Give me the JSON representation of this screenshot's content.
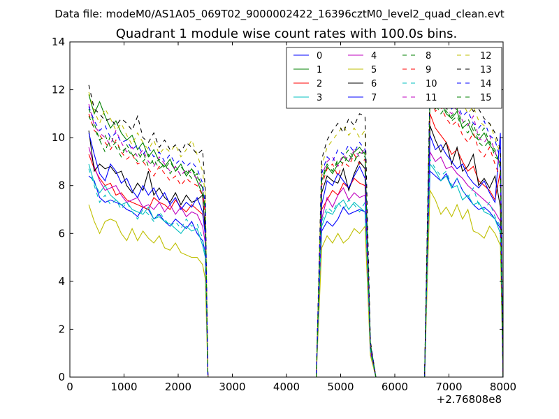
{
  "chart_data": {
    "type": "line",
    "suptitle": "Data file: modeM0/AS1A05_069T02_9000002422_16396cztM0_level2_quad_clean.evt",
    "title": "Quadrant 1 module wise count rates with 100.0s bins.",
    "xlabel": "",
    "ylabel": "",
    "x_offset_label": "+2.76808e8",
    "xlim": [
      0,
      8000
    ],
    "ylim": [
      0,
      14
    ],
    "x_ticks": [
      0,
      1000,
      2000,
      3000,
      4000,
      5000,
      6000,
      7000,
      8000
    ],
    "y_ticks": [
      0,
      2,
      4,
      6,
      8,
      10,
      12,
      14
    ],
    "legend_position": "top-right",
    "x": [
      350,
      450,
      550,
      650,
      750,
      850,
      950,
      1050,
      1150,
      1250,
      1350,
      1450,
      1550,
      1650,
      1750,
      1850,
      1950,
      2050,
      2150,
      2250,
      2350,
      2450,
      2500,
      2550,
      2650,
      2750,
      4450,
      4550,
      4650,
      4750,
      4850,
      4950,
      5050,
      5150,
      5250,
      5350,
      5450,
      5550,
      5650,
      6450,
      6550,
      6650,
      6750,
      6850,
      6950,
      7050,
      7150,
      7250,
      7350,
      7450,
      7550,
      7650,
      7750,
      7850,
      7950,
      8000
    ],
    "series": [
      {
        "name": "0",
        "color": "#0000ff",
        "dash": "solid",
        "values": [
          8.4,
          8.2,
          7.5,
          7.3,
          7.4,
          7.3,
          7.2,
          7.0,
          6.9,
          6.7,
          7.1,
          7.0,
          6.6,
          6.8,
          6.5,
          6.3,
          6.6,
          6.4,
          6.2,
          6.5,
          6.0,
          5.7,
          5.2,
          0,
          0,
          0,
          0,
          0,
          6.1,
          6.5,
          6.3,
          6.6,
          7.1,
          6.8,
          6.9,
          7.0,
          6.9,
          1.0,
          0,
          0,
          0,
          8.6,
          8.4,
          8.2,
          8.5,
          7.9,
          8.3,
          7.8,
          7.5,
          7.2,
          7.0,
          7.1,
          6.9,
          6.6,
          6.2,
          0
        ]
      },
      {
        "name": "1",
        "color": "#008000",
        "dash": "solid",
        "values": [
          11.8,
          11.0,
          11.5,
          10.9,
          10.4,
          10.7,
          10.2,
          9.9,
          10.1,
          9.5,
          9.8,
          9.2,
          9.5,
          9.0,
          8.8,
          9.1,
          8.6,
          8.9,
          8.4,
          8.7,
          8.2,
          7.6,
          7.0,
          0,
          0,
          0,
          0,
          0,
          8.2,
          8.8,
          8.5,
          8.9,
          9.2,
          9.0,
          9.4,
          9.6,
          9.3,
          1.4,
          0,
          0,
          0,
          11.6,
          11.2,
          11.5,
          11.0,
          10.8,
          11.1,
          10.4,
          10.6,
          10.1,
          9.9,
          10.2,
          9.7,
          9.4,
          8.9,
          0
        ]
      },
      {
        "name": "2",
        "color": "#ff0000",
        "dash": "solid",
        "values": [
          9.3,
          8.7,
          8.3,
          8.0,
          8.1,
          7.6,
          7.7,
          7.4,
          7.3,
          7.2,
          7.1,
          7.0,
          7.5,
          7.3,
          7.2,
          7.0,
          7.4,
          7.1,
          6.9,
          7.2,
          7.0,
          6.8,
          6.2,
          0,
          0,
          0,
          0,
          0,
          7.0,
          7.4,
          7.8,
          7.6,
          8.1,
          7.9,
          8.3,
          8.1,
          8.0,
          1.2,
          0,
          0,
          0,
          11.0,
          10.4,
          10.1,
          9.8,
          9.3,
          9.5,
          9.0,
          8.6,
          8.8,
          8.2,
          8.0,
          7.8,
          7.4,
          8.6,
          0
        ]
      },
      {
        "name": "3",
        "color": "#00bfbf",
        "dash": "solid",
        "values": [
          8.9,
          8.1,
          7.7,
          8.0,
          7.6,
          7.4,
          7.2,
          7.3,
          7.0,
          6.9,
          6.8,
          7.1,
          6.6,
          6.7,
          6.5,
          6.4,
          6.2,
          6.0,
          6.3,
          6.1,
          6.2,
          5.5,
          5.0,
          0,
          0,
          0,
          0,
          0,
          6.3,
          6.9,
          6.8,
          7.2,
          7.4,
          7.0,
          7.3,
          7.1,
          6.9,
          1.1,
          0,
          0,
          0,
          8.9,
          8.6,
          8.2,
          8.4,
          7.9,
          8.0,
          7.4,
          7.6,
          7.2,
          7.3,
          6.9,
          6.8,
          6.6,
          6.0,
          0
        ]
      },
      {
        "name": "4",
        "color": "#bf00bf",
        "dash": "solid",
        "values": [
          9.6,
          8.8,
          8.2,
          7.8,
          7.9,
          8.0,
          7.6,
          7.3,
          7.4,
          7.5,
          7.1,
          7.2,
          7.0,
          7.3,
          6.9,
          7.2,
          6.8,
          7.1,
          6.7,
          6.9,
          6.8,
          6.3,
          5.6,
          0,
          0,
          0,
          0,
          0,
          6.6,
          7.5,
          7.1,
          7.6,
          7.9,
          7.4,
          7.7,
          7.5,
          7.6,
          1.1,
          0,
          0,
          0,
          9.4,
          9.0,
          9.2,
          8.7,
          8.8,
          8.5,
          8.3,
          8.0,
          7.8,
          7.6,
          7.4,
          7.2,
          6.9,
          6.5,
          0
        ]
      },
      {
        "name": "5",
        "color": "#bfbf00",
        "dash": "solid",
        "values": [
          7.2,
          6.5,
          6.0,
          6.5,
          6.6,
          6.5,
          6.0,
          5.7,
          6.2,
          5.7,
          6.1,
          5.8,
          5.6,
          5.9,
          5.4,
          5.3,
          5.6,
          5.2,
          5.1,
          5.0,
          5.0,
          4.7,
          4.1,
          0,
          0,
          0,
          0,
          0,
          5.4,
          5.9,
          5.6,
          6.0,
          5.6,
          5.8,
          6.2,
          6.0,
          6.3,
          0.9,
          0,
          0,
          0,
          7.8,
          7.4,
          6.8,
          7.1,
          6.7,
          7.2,
          6.6,
          7.0,
          6.1,
          6.0,
          5.8,
          6.3,
          6.0,
          5.5,
          0
        ]
      },
      {
        "name": "6",
        "color": "#000000",
        "dash": "solid",
        "values": [
          10.3,
          8.6,
          8.9,
          8.7,
          8.8,
          8.5,
          8.6,
          8.0,
          7.7,
          8.1,
          7.8,
          8.6,
          7.6,
          7.9,
          7.5,
          7.3,
          7.7,
          7.2,
          7.6,
          7.3,
          7.4,
          7.6,
          6.1,
          0,
          0,
          0,
          0,
          0,
          7.7,
          8.4,
          8.2,
          8.1,
          8.7,
          7.8,
          8.5,
          9.0,
          8.7,
          1.3,
          0,
          0,
          0,
          10.5,
          9.9,
          9.4,
          9.8,
          8.9,
          9.6,
          8.6,
          8.8,
          9.3,
          8.0,
          8.3,
          7.9,
          8.4,
          7.1,
          0
        ]
      },
      {
        "name": "7",
        "color": "#0000ff",
        "dash": "solid",
        "values": [
          10.2,
          9.3,
          8.5,
          8.2,
          8.9,
          8.6,
          8.1,
          8.3,
          7.8,
          7.5,
          8.0,
          7.6,
          7.9,
          7.4,
          7.7,
          7.2,
          7.5,
          7.0,
          7.3,
          7.1,
          7.5,
          6.9,
          5.9,
          0,
          0,
          0,
          0,
          0,
          7.2,
          8.2,
          8.0,
          8.5,
          8.2,
          7.9,
          8.4,
          8.8,
          8.3,
          1.2,
          0,
          0,
          0,
          10.1,
          9.5,
          9.7,
          9.3,
          9.0,
          8.7,
          8.9,
          8.4,
          8.1,
          7.9,
          8.2,
          7.7,
          7.3,
          10.2,
          0
        ]
      },
      {
        "name": "8",
        "color": "#008000",
        "dash": "dashed",
        "values": [
          11.2,
          10.6,
          9.9,
          9.4,
          10.1,
          9.6,
          9.2,
          9.7,
          9.3,
          9.0,
          9.4,
          8.8,
          9.1,
          8.7,
          8.9,
          8.5,
          8.8,
          8.4,
          8.6,
          8.3,
          8.5,
          7.9,
          7.1,
          0,
          0,
          0,
          0,
          0,
          8.3,
          8.9,
          8.6,
          9.0,
          9.2,
          9.5,
          9.1,
          9.3,
          9.4,
          1.3,
          0,
          0,
          0,
          11.9,
          11.4,
          11.0,
          11.3,
          10.7,
          10.9,
          10.4,
          10.2,
          10.6,
          9.8,
          9.6,
          9.9,
          9.2,
          9.0,
          0
        ]
      },
      {
        "name": "9",
        "color": "#ff0000",
        "dash": "dashed",
        "values": [
          11.0,
          10.3,
          10.1,
          9.8,
          9.5,
          9.9,
          9.4,
          9.1,
          9.3,
          8.9,
          9.0,
          8.7,
          8.4,
          8.8,
          8.5,
          8.2,
          8.4,
          8.0,
          8.3,
          8.1,
          8.0,
          7.6,
          6.8,
          0,
          0,
          0,
          0,
          0,
          8.0,
          8.7,
          8.9,
          8.4,
          9.0,
          8.8,
          9.3,
          8.9,
          9.1,
          1.3,
          0,
          0,
          0,
          11.7,
          11.1,
          11.3,
          10.8,
          10.5,
          10.7,
          10.1,
          9.8,
          10.2,
          9.5,
          9.2,
          9.6,
          8.9,
          8.3,
          0
        ]
      },
      {
        "name": "10",
        "color": "#00bfbf",
        "dash": "dashed",
        "values": [
          8.7,
          8.0,
          7.3,
          7.6,
          7.2,
          7.4,
          7.0,
          7.3,
          6.9,
          6.6,
          7.0,
          6.8,
          6.5,
          6.9,
          6.6,
          6.3,
          6.5,
          6.2,
          6.6,
          6.3,
          6.4,
          5.8,
          5.1,
          0,
          0,
          0,
          0,
          0,
          6.5,
          7.1,
          6.9,
          7.3,
          7.0,
          7.4,
          7.2,
          6.9,
          7.3,
          1.1,
          0,
          0,
          0,
          9.1,
          8.7,
          8.4,
          8.6,
          8.0,
          8.3,
          7.8,
          7.5,
          7.9,
          7.2,
          7.0,
          7.3,
          6.7,
          6.3,
          0
        ]
      },
      {
        "name": "11",
        "color": "#bf00bf",
        "dash": "dashed",
        "values": [
          11.4,
          10.5,
          10.2,
          10.0,
          9.7,
          10.3,
          9.8,
          9.4,
          9.6,
          9.2,
          9.5,
          9.0,
          8.8,
          9.2,
          8.9,
          8.6,
          8.8,
          8.4,
          8.7,
          8.5,
          8.3,
          7.8,
          7.0,
          0,
          0,
          0,
          0,
          0,
          8.4,
          9.0,
          9.2,
          8.8,
          9.3,
          9.0,
          9.5,
          9.2,
          9.6,
          1.3,
          0,
          0,
          0,
          12.0,
          11.6,
          11.8,
          11.2,
          11.0,
          11.3,
          10.7,
          10.5,
          10.9,
          10.0,
          9.8,
          10.1,
          9.4,
          8.8,
          0
        ]
      },
      {
        "name": "12",
        "color": "#bfbf00",
        "dash": "dashed",
        "values": [
          11.9,
          11.1,
          10.6,
          11.2,
          10.8,
          10.3,
          10.6,
          10.1,
          9.7,
          10.2,
          9.8,
          9.5,
          9.9,
          9.3,
          9.6,
          9.4,
          9.7,
          9.2,
          9.5,
          9.9,
          9.3,
          8.6,
          7.6,
          0,
          0,
          0,
          0,
          0,
          8.8,
          9.6,
          9.9,
          10.2,
          10.5,
          10.1,
          10.4,
          10.0,
          10.3,
          1.4,
          0,
          0,
          0,
          12.3,
          11.9,
          12.5,
          11.5,
          11.8,
          11.2,
          11.5,
          11.0,
          11.3,
          10.7,
          10.5,
          10.6,
          10.0,
          9.3,
          0
        ]
      },
      {
        "name": "13",
        "color": "#000000",
        "dash": "dashed",
        "values": [
          12.2,
          11.2,
          11.0,
          10.7,
          10.8,
          10.5,
          10.8,
          10.6,
          10.3,
          10.9,
          10.0,
          9.8,
          10.2,
          9.6,
          9.9,
          9.5,
          9.7,
          9.4,
          9.8,
          9.6,
          9.3,
          9.5,
          7.8,
          0,
          0,
          0,
          0,
          0,
          9.1,
          9.9,
          10.3,
          10.6,
          10.2,
          10.8,
          10.5,
          11.0,
          10.9,
          1.5,
          0,
          0,
          0,
          12.4,
          12.0,
          12.3,
          11.8,
          11.6,
          12.1,
          11.3,
          11.5,
          11.1,
          11.2,
          10.8,
          10.6,
          10.2,
          9.5,
          0
        ]
      },
      {
        "name": "14",
        "color": "#0000ff",
        "dash": "dashed",
        "values": [
          11.3,
          10.7,
          10.3,
          10.5,
          10.0,
          10.2,
          9.8,
          9.9,
          9.5,
          9.7,
          9.3,
          9.6,
          9.2,
          9.4,
          9.0,
          9.3,
          8.9,
          9.1,
          8.8,
          9.0,
          8.7,
          8.1,
          7.2,
          0,
          0,
          0,
          0,
          0,
          8.5,
          9.2,
          9.0,
          9.5,
          9.3,
          9.7,
          9.4,
          9.8,
          9.5,
          1.4,
          0,
          0,
          0,
          12.1,
          11.7,
          11.5,
          11.9,
          11.2,
          11.4,
          10.9,
          11.1,
          10.6,
          10.4,
          10.7,
          10.1,
          9.9,
          9.1,
          0
        ]
      },
      {
        "name": "15",
        "color": "#008000",
        "dash": "dashed",
        "values": [
          10.9,
          10.4,
          9.9,
          10.1,
          9.6,
          9.8,
          9.4,
          9.6,
          9.2,
          9.4,
          9.0,
          9.3,
          8.9,
          9.1,
          8.7,
          9.0,
          8.6,
          8.8,
          8.5,
          8.7,
          8.4,
          7.9,
          7.0,
          0,
          0,
          0,
          0,
          0,
          8.2,
          8.8,
          8.6,
          9.1,
          8.9,
          9.3,
          9.0,
          9.4,
          9.2,
          1.3,
          0,
          0,
          0,
          11.8,
          11.3,
          11.6,
          11.1,
          10.9,
          11.2,
          10.6,
          10.8,
          10.3,
          10.1,
          10.4,
          9.8,
          9.5,
          8.7,
          0
        ]
      }
    ]
  }
}
